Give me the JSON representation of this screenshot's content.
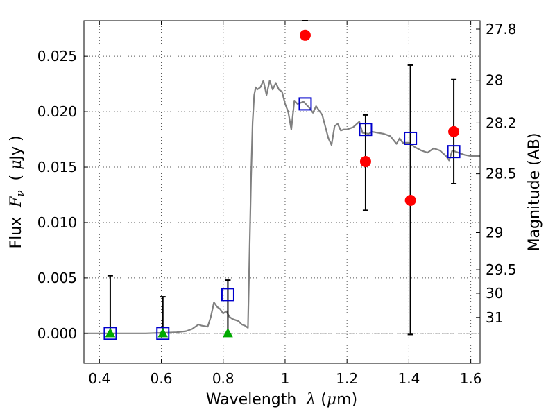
{
  "chart_data": {
    "type": "line",
    "xlabel_prefix": "Wavelength  ",
    "xlabel_symbol": "λ",
    "xlabel_unit_open": " (",
    "xlabel_unit_mu": "μ",
    "xlabel_unit_rest": "m)",
    "ylabel_prefix": "Flux  ",
    "ylabel_F": "F",
    "ylabel_nu": "ν",
    "ylabel_unit_open": "  ( ",
    "ylabel_unit_mu": "μ",
    "ylabel_unit_rest": "Jy )",
    "y2label": "Magnitude (AB)",
    "xlim": [
      0.35,
      1.63
    ],
    "ylim": [
      -0.0027,
      0.0282
    ],
    "grid": true,
    "xticks": [
      0.4,
      0.6,
      0.8,
      1.0,
      1.2,
      1.4,
      1.6
    ],
    "xtick_labels": [
      "0.4",
      "0.6",
      "0.8",
      "1",
      "1.2",
      "1.4",
      "1.6"
    ],
    "yticks": [
      0.0,
      0.005,
      0.01,
      0.015,
      0.02,
      0.025
    ],
    "ytick_labels": [
      "0.000",
      "0.005",
      "0.010",
      "0.015",
      "0.020",
      "0.025"
    ],
    "mag_ticks": [
      {
        "label": "27.8",
        "y": 0.02745
      },
      {
        "label": "28",
        "y": 0.02284
      },
      {
        "label": "28.2",
        "y": 0.01898
      },
      {
        "label": "28.5",
        "y": 0.0144
      },
      {
        "label": "29",
        "y": 0.00909
      },
      {
        "label": "29.5",
        "y": 0.00574
      },
      {
        "label": "30",
        "y": 0.00362
      },
      {
        "label": "31",
        "y": 0.00144
      }
    ],
    "model_curve": {
      "color": "#808080",
      "x": [
        0.35,
        0.45,
        0.55,
        0.65,
        0.68,
        0.7,
        0.72,
        0.73,
        0.75,
        0.76,
        0.77,
        0.78,
        0.79,
        0.8,
        0.81,
        0.82,
        0.83,
        0.85,
        0.86,
        0.87,
        0.88,
        0.89,
        0.895,
        0.9,
        0.905,
        0.91,
        0.92,
        0.93,
        0.94,
        0.95,
        0.96,
        0.97,
        0.98,
        0.99,
        1.0,
        1.01,
        1.02,
        1.03,
        1.04,
        1.05,
        1.06,
        1.07,
        1.08,
        1.09,
        1.1,
        1.12,
        1.14,
        1.15,
        1.16,
        1.17,
        1.18,
        1.19,
        1.2,
        1.22,
        1.24,
        1.25,
        1.27,
        1.28,
        1.3,
        1.32,
        1.34,
        1.36,
        1.37,
        1.38,
        1.4,
        1.42,
        1.44,
        1.46,
        1.48,
        1.5,
        1.52,
        1.53,
        1.54,
        1.56,
        1.58,
        1.6,
        1.63
      ],
      "y": [
        0.0,
        0.0,
        0.0,
        0.0001,
        0.0002,
        0.0004,
        0.0008,
        0.0007,
        0.0006,
        0.0015,
        0.0028,
        0.0024,
        0.0022,
        0.0018,
        0.002,
        0.0015,
        0.0013,
        0.0011,
        0.0008,
        0.0007,
        0.0005,
        0.014,
        0.019,
        0.0215,
        0.0222,
        0.022,
        0.0222,
        0.0228,
        0.0215,
        0.0228,
        0.022,
        0.0226,
        0.022,
        0.0218,
        0.0207,
        0.02,
        0.0184,
        0.021,
        0.0207,
        0.0208,
        0.0209,
        0.0206,
        0.0203,
        0.0199,
        0.0205,
        0.0197,
        0.0176,
        0.017,
        0.0187,
        0.0189,
        0.0183,
        0.0184,
        0.0184,
        0.0186,
        0.0191,
        0.0181,
        0.018,
        0.0182,
        0.0181,
        0.018,
        0.0178,
        0.0171,
        0.0176,
        0.0172,
        0.0172,
        0.0168,
        0.0165,
        0.0163,
        0.0167,
        0.0165,
        0.016,
        0.0156,
        0.0165,
        0.0163,
        0.0161,
        0.016,
        0.016
      ]
    },
    "model_points": {
      "color": "#0000cc",
      "marker": "open-square",
      "x": [
        0.435,
        0.605,
        0.815,
        1.065,
        1.26,
        1.405,
        1.545
      ],
      "y": [
        0.0,
        0.0,
        0.0035,
        0.0207,
        0.0184,
        0.0176,
        0.0164
      ]
    },
    "detections": {
      "color": "#ff0000",
      "marker": "circle",
      "x": [
        1.065,
        1.26,
        1.405,
        1.545
      ],
      "y": [
        0.0269,
        0.0155,
        0.012,
        0.0182
      ],
      "err_low": [
        0.0282,
        0.0111,
        -0.0001,
        0.0135
      ],
      "err_high": [
        0.0282,
        0.0197,
        0.0242,
        0.0229
      ]
    },
    "upper_limits": {
      "color": "#00aa00",
      "marker": "triangle",
      "x": [
        0.435,
        0.605,
        0.815
      ],
      "y": [
        0.0,
        0.0,
        0.0
      ],
      "err_high": [
        0.0052,
        0.0033,
        0.0048
      ]
    },
    "zero_line": {
      "y": 0.0,
      "color": "#888888",
      "style": "dash-dot"
    }
  }
}
